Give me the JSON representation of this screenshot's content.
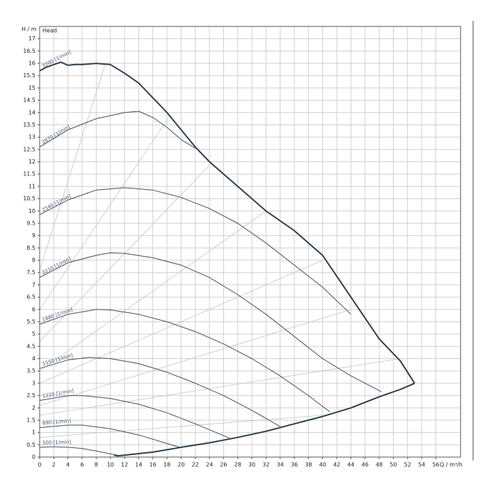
{
  "chart_data": {
    "type": "line",
    "y_label": "H / m",
    "y_title": "Head",
    "x_label": "Q / m³/h",
    "xlim": [
      0,
      59.5
    ],
    "ylim": [
      0,
      17.5
    ],
    "grid": true,
    "xticks": [
      0,
      2,
      4,
      6,
      8,
      10,
      12,
      14,
      16,
      18,
      20,
      22,
      24,
      26,
      28,
      30,
      32,
      34,
      36,
      38,
      40,
      42,
      44,
      46,
      48,
      50,
      52,
      54,
      56
    ],
    "yticks": [
      0,
      0.5,
      1,
      1.5,
      2,
      2.5,
      3,
      3.5,
      4,
      4.5,
      5,
      5.5,
      6,
      6.5,
      7,
      7.5,
      8,
      8.5,
      9,
      9.5,
      10,
      10.5,
      11,
      11.5,
      12,
      12.5,
      13,
      13.5,
      14,
      14.5,
      15,
      15.5,
      16,
      16.5,
      17
    ],
    "series": [
      {
        "name": "3200 [1/min]",
        "color": "#2e3d4f",
        "x": [
          0,
          1,
          2,
          3,
          4,
          5,
          6,
          8,
          10,
          12,
          14,
          16,
          18,
          20,
          22,
          24,
          28,
          32,
          36,
          40,
          44,
          48,
          51,
          53
        ],
        "values": [
          15.7,
          15.85,
          15.95,
          16.05,
          15.92,
          15.95,
          15.95,
          16.0,
          15.95,
          15.6,
          15.2,
          14.6,
          14.0,
          13.3,
          12.6,
          12.0,
          11.0,
          10.0,
          9.2,
          8.2,
          6.5,
          4.8,
          3.9,
          3.0
        ]
      },
      {
        "name": "2870 [1/min]",
        "color": "#3d4c5e",
        "x": [
          0,
          4,
          8,
          12,
          14,
          16,
          18,
          20,
          22
        ],
        "values": [
          12.6,
          13.3,
          13.75,
          14.0,
          14.05,
          13.8,
          13.4,
          12.9,
          12.55
        ]
      },
      {
        "name": "2540 [1/min]",
        "color": "#3d4c5e",
        "x": [
          0,
          4,
          8,
          12,
          16,
          20,
          24,
          28,
          32,
          36,
          40,
          44
        ],
        "values": [
          9.85,
          10.45,
          10.85,
          10.95,
          10.85,
          10.55,
          10.1,
          9.5,
          8.7,
          7.8,
          6.9,
          5.8
        ]
      },
      {
        "name": "2210 [1/min]",
        "color": "#3d4c5e",
        "x": [
          0,
          4,
          8,
          10,
          12,
          16,
          20,
          24,
          28,
          32,
          36,
          40,
          44,
          48.3
        ],
        "values": [
          7.3,
          7.9,
          8.2,
          8.3,
          8.28,
          8.1,
          7.8,
          7.3,
          6.6,
          5.8,
          4.9,
          4.0,
          3.3,
          2.66
        ]
      },
      {
        "name": "1880 [1/min]",
        "color": "#3d4c5e",
        "x": [
          0,
          4,
          8,
          10,
          14,
          18,
          22,
          26,
          30,
          34,
          38,
          41
        ],
        "values": [
          5.4,
          5.8,
          6.0,
          5.98,
          5.8,
          5.5,
          5.1,
          4.6,
          4.0,
          3.3,
          2.5,
          1.84
        ]
      },
      {
        "name": "1550 [1/min]",
        "color": "#3d4c5e",
        "x": [
          0,
          4,
          7,
          10,
          14,
          18,
          22,
          26,
          30,
          34
        ],
        "values": [
          3.6,
          3.95,
          4.05,
          4.0,
          3.8,
          3.45,
          3.0,
          2.5,
          1.9,
          1.24
        ]
      },
      {
        "name": "1220 [1/min]",
        "color": "#3d4c5e",
        "x": [
          0,
          4,
          6,
          10,
          14,
          18,
          22,
          26.9
        ],
        "values": [
          2.3,
          2.5,
          2.5,
          2.38,
          2.15,
          1.8,
          1.35,
          0.76
        ]
      },
      {
        "name": "890 [1/min]",
        "color": "#3d4c5e",
        "x": [
          0,
          4,
          6,
          10,
          14,
          18,
          19.8
        ],
        "values": [
          1.2,
          1.3,
          1.3,
          1.15,
          0.9,
          0.55,
          0.4
        ]
      },
      {
        "name": "500 [1/min]",
        "color": "#3d4c5e",
        "x": [
          0,
          2,
          4,
          6,
          8,
          10,
          11
        ],
        "values": [
          0.4,
          0.42,
          0.4,
          0.35,
          0.25,
          0.13,
          0.08
        ]
      }
    ],
    "limit_curves": [
      {
        "color": "#2e3d4f",
        "x": [
          10.5,
          11,
          12,
          14,
          16,
          20,
          24,
          28,
          32,
          36,
          40,
          44,
          48,
          51,
          53
        ],
        "values": [
          0.08,
          0.05,
          0.08,
          0.14,
          0.2,
          0.4,
          0.58,
          0.8,
          1.05,
          1.35,
          1.65,
          2.0,
          2.45,
          2.75,
          3.0
        ]
      }
    ],
    "guide_lines": [
      {
        "color": "#c4c4c4",
        "x": [
          0,
          9.3
        ],
        "values": [
          7.6,
          16.0
        ]
      },
      {
        "color": "#c4c4c4",
        "x": [
          0,
          18.5
        ],
        "values": [
          6.0,
          13.9
        ]
      },
      {
        "color": "#c4c4c4",
        "x": [
          0,
          24.5
        ],
        "values": [
          4.7,
          12.0
        ]
      },
      {
        "color": "#c4c4c4",
        "x": [
          0,
          32
        ],
        "values": [
          3.5,
          10.0
        ]
      },
      {
        "color": "#c4c4c4",
        "x": [
          0,
          40
        ],
        "values": [
          3.0,
          8.0
        ]
      },
      {
        "color": "#c4c4c4",
        "x": [
          0,
          44
        ],
        "values": [
          2.1,
          6.0
        ]
      },
      {
        "color": "#c4c4c4",
        "x": [
          0,
          51
        ],
        "values": [
          1.7,
          4.0
        ]
      },
      {
        "color": "#c4c4c4",
        "x": [
          0,
          40
        ],
        "values": [
          0.8,
          1.7
        ]
      }
    ]
  }
}
